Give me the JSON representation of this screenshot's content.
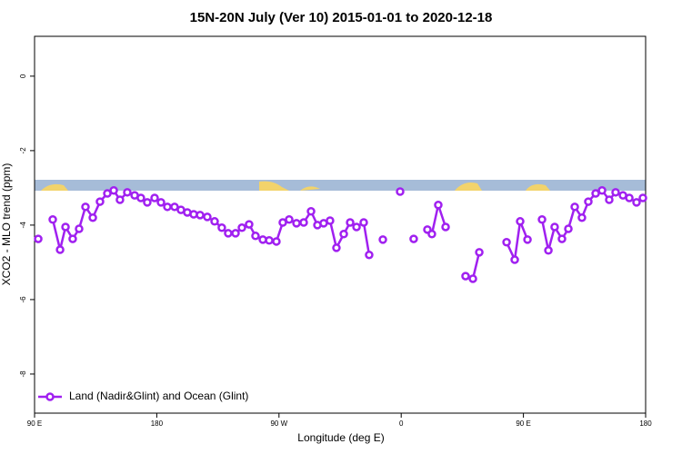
{
  "chart_data": {
    "type": "line",
    "title": "15N-20N July (Ver 10)   2015-01-01 to 2020-12-18",
    "x_label": "Longitude (deg E)",
    "y_label": "XCO2 - MLO trend (ppm)",
    "xlim": [
      90,
      540
    ],
    "ylim": [
      -9.05,
      1.07
    ],
    "xticks": [
      {
        "value": 90,
        "label": "90 E"
      },
      180,
      {
        "value": 270,
        "label": "90 W"
      },
      {
        "value": 360,
        "label": "0"
      },
      {
        "value": 450,
        "label": "90 E"
      },
      {
        "value": 540,
        "label": "180"
      }
    ],
    "yticks": [
      0,
      -2,
      -4,
      -6,
      -8
    ],
    "legend": "bottom-left",
    "x": [
      92.7,
      98,
      103.4,
      108.8,
      112.8,
      118.1,
      122.8,
      127.5,
      132.9,
      138.2,
      143.6,
      148.3,
      152.9,
      158.3,
      163.7,
      168.3,
      173,
      178.4,
      183.1,
      187.8,
      193.1,
      197.8,
      202.5,
      207.2,
      211.9,
      217.2,
      222.6,
      227.9,
      232.6,
      238,
      242.7,
      248,
      252.7,
      258.1,
      262.8,
      268.1,
      272.8,
      277.5,
      282.9,
      288.2,
      293.6,
      298.3,
      302.9,
      307.6,
      312.3,
      317.7,
      322.4,
      327.1,
      332.4,
      336.4,
      341,
      346.5,
      353,
      359.2,
      364,
      369.2,
      374,
      379.3,
      382.6,
      387.3,
      392.7,
      400,
      407.4,
      412.8,
      417.5,
      427,
      437.6,
      443.6,
      447.6,
      453,
      458,
      463.7,
      468.4,
      473,
      478.4,
      483.1,
      487.8,
      493.1,
      497.8,
      503.2,
      507.9,
      513.2,
      517.9,
      523.3,
      528,
      533.3,
      538
    ],
    "series": [
      {
        "name": "Land (Nadir&Glint) and Ocean (Glint)",
        "color": "#a020f0",
        "values": [
          -4.37,
          null,
          -3.85,
          -4.66,
          -4.05,
          -4.37,
          -4.1,
          -3.51,
          -3.8,
          -3.37,
          -3.15,
          -3.07,
          -3.32,
          -3.12,
          -3.2,
          -3.27,
          -3.39,
          -3.27,
          -3.39,
          -3.51,
          -3.51,
          -3.59,
          -3.66,
          -3.71,
          -3.73,
          -3.78,
          -3.9,
          -4.07,
          -4.22,
          -4.22,
          -4.07,
          -3.98,
          -4.29,
          -4.39,
          -4.41,
          -4.44,
          -3.93,
          -3.85,
          -3.95,
          -3.93,
          -3.63,
          -4.0,
          -3.95,
          -3.88,
          -4.61,
          -4.24,
          -3.93,
          -4.05,
          -3.93,
          -4.8,
          null,
          -4.39,
          null,
          -3.1,
          null,
          -4.37,
          null,
          -4.12,
          -4.24,
          -3.46,
          -4.05,
          null,
          -5.37,
          -5.44,
          -4.73,
          null,
          -4.46,
          -4.93,
          -3.9,
          -4.39,
          null,
          -3.85,
          -4.68,
          -4.05,
          -4.37,
          -4.1,
          -3.51,
          -3.8,
          -3.37,
          -3.15,
          -3.07,
          -3.32,
          -3.12,
          -3.2,
          -3.27,
          -3.39,
          -3.27
        ]
      }
    ]
  }
}
